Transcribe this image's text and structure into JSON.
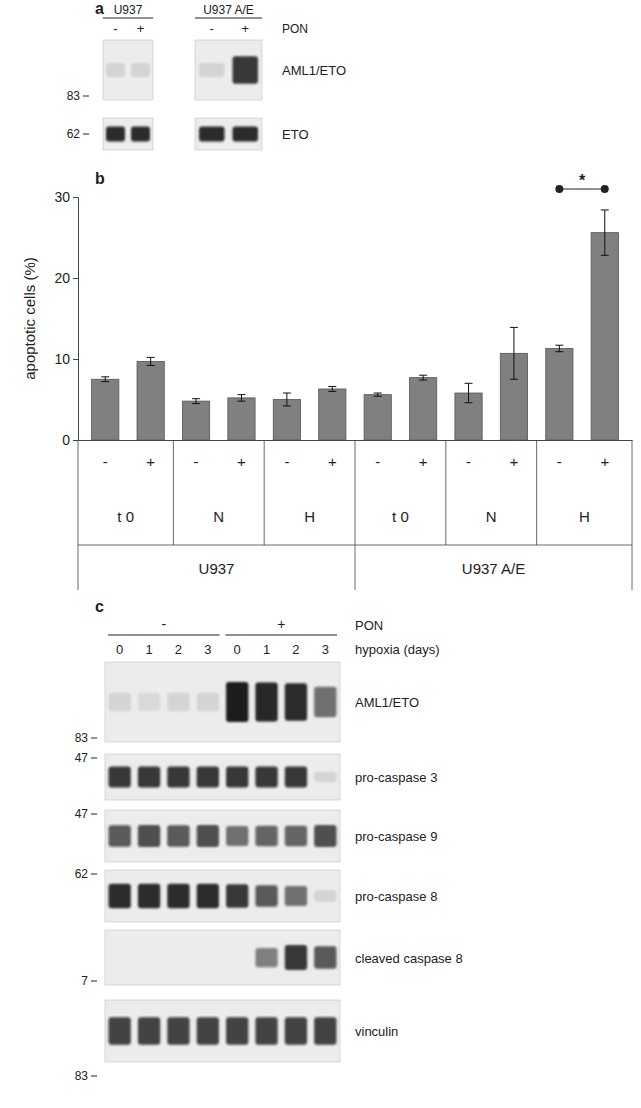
{
  "panel_labels": [
    "a",
    "b",
    "c"
  ],
  "blot_a": {
    "groups": [
      {
        "label": "U937",
        "lanes": [
          "-",
          "+"
        ]
      },
      {
        "label": "U937 A/E",
        "lanes": [
          "-",
          "+"
        ]
      }
    ],
    "lane_factor": "PON",
    "rows": [
      {
        "label": "AML1/ETO",
        "marker": 83,
        "intensity": [
          0.1,
          0.1,
          0.1,
          0.85
        ]
      },
      {
        "label": "ETO",
        "marker": 62,
        "intensity": [
          0.9,
          0.9,
          0.9,
          0.9
        ]
      }
    ]
  },
  "chart_data": {
    "type": "bar",
    "categories": [
      "-",
      "+",
      "-",
      "+",
      "-",
      "+",
      "-",
      "+",
      "-",
      "+",
      "-",
      "+"
    ],
    "values": [
      7.5,
      9.7,
      4.8,
      5.2,
      5.0,
      6.3,
      5.6,
      7.7,
      5.8,
      10.7,
      11.3,
      25.6
    ],
    "errors": [
      0.3,
      0.5,
      0.3,
      0.4,
      0.8,
      0.3,
      0.2,
      0.3,
      1.2,
      3.2,
      0.4,
      2.8
    ],
    "groups": [
      "t 0",
      "N",
      "H",
      "t 0",
      "N",
      "H"
    ],
    "cell_lines": [
      "U937",
      "U937 A/E"
    ],
    "ylabel": "apoptotic cells (%)",
    "ylim": [
      0,
      30
    ],
    "yticks": [
      0,
      10,
      20,
      30
    ],
    "color": "#808080",
    "grid": false,
    "annotations": [
      {
        "text": "*",
        "between": [
          10,
          11
        ]
      }
    ]
  },
  "blot_c": {
    "treatments": [
      {
        "label": "-",
        "days": [
          0,
          1,
          2,
          3
        ]
      },
      {
        "label": "+",
        "days": [
          0,
          1,
          2,
          3
        ]
      }
    ],
    "treatment_name": "PON",
    "days_name": "hypoxia (days)",
    "rows": [
      {
        "label": "AML1/ETO",
        "marker": 83,
        "intensity": [
          0.1,
          0.08,
          0.1,
          0.1,
          1,
          0.95,
          0.9,
          0.6
        ]
      },
      {
        "label": "pro-caspase 3",
        "marker": 47,
        "intensity": [
          0.85,
          0.85,
          0.85,
          0.85,
          0.85,
          0.85,
          0.85,
          0.1
        ]
      },
      {
        "label": "pro-caspase 9",
        "marker": 47,
        "intensity": [
          0.7,
          0.75,
          0.7,
          0.75,
          0.6,
          0.65,
          0.65,
          0.75
        ]
      },
      {
        "label": "pro-caspase 8",
        "marker": 62,
        "intensity": [
          0.9,
          0.9,
          0.9,
          0.9,
          0.85,
          0.7,
          0.6,
          0.1
        ]
      },
      {
        "label": "cleaved caspase 8",
        "marker": 7,
        "intensity": [
          0,
          0,
          0,
          0,
          0,
          0.5,
          0.85,
          0.7
        ]
      },
      {
        "label": "vinculin",
        "marker": 83,
        "intensity": [
          0.8,
          0.8,
          0.8,
          0.8,
          0.8,
          0.8,
          0.8,
          0.8
        ]
      }
    ]
  }
}
